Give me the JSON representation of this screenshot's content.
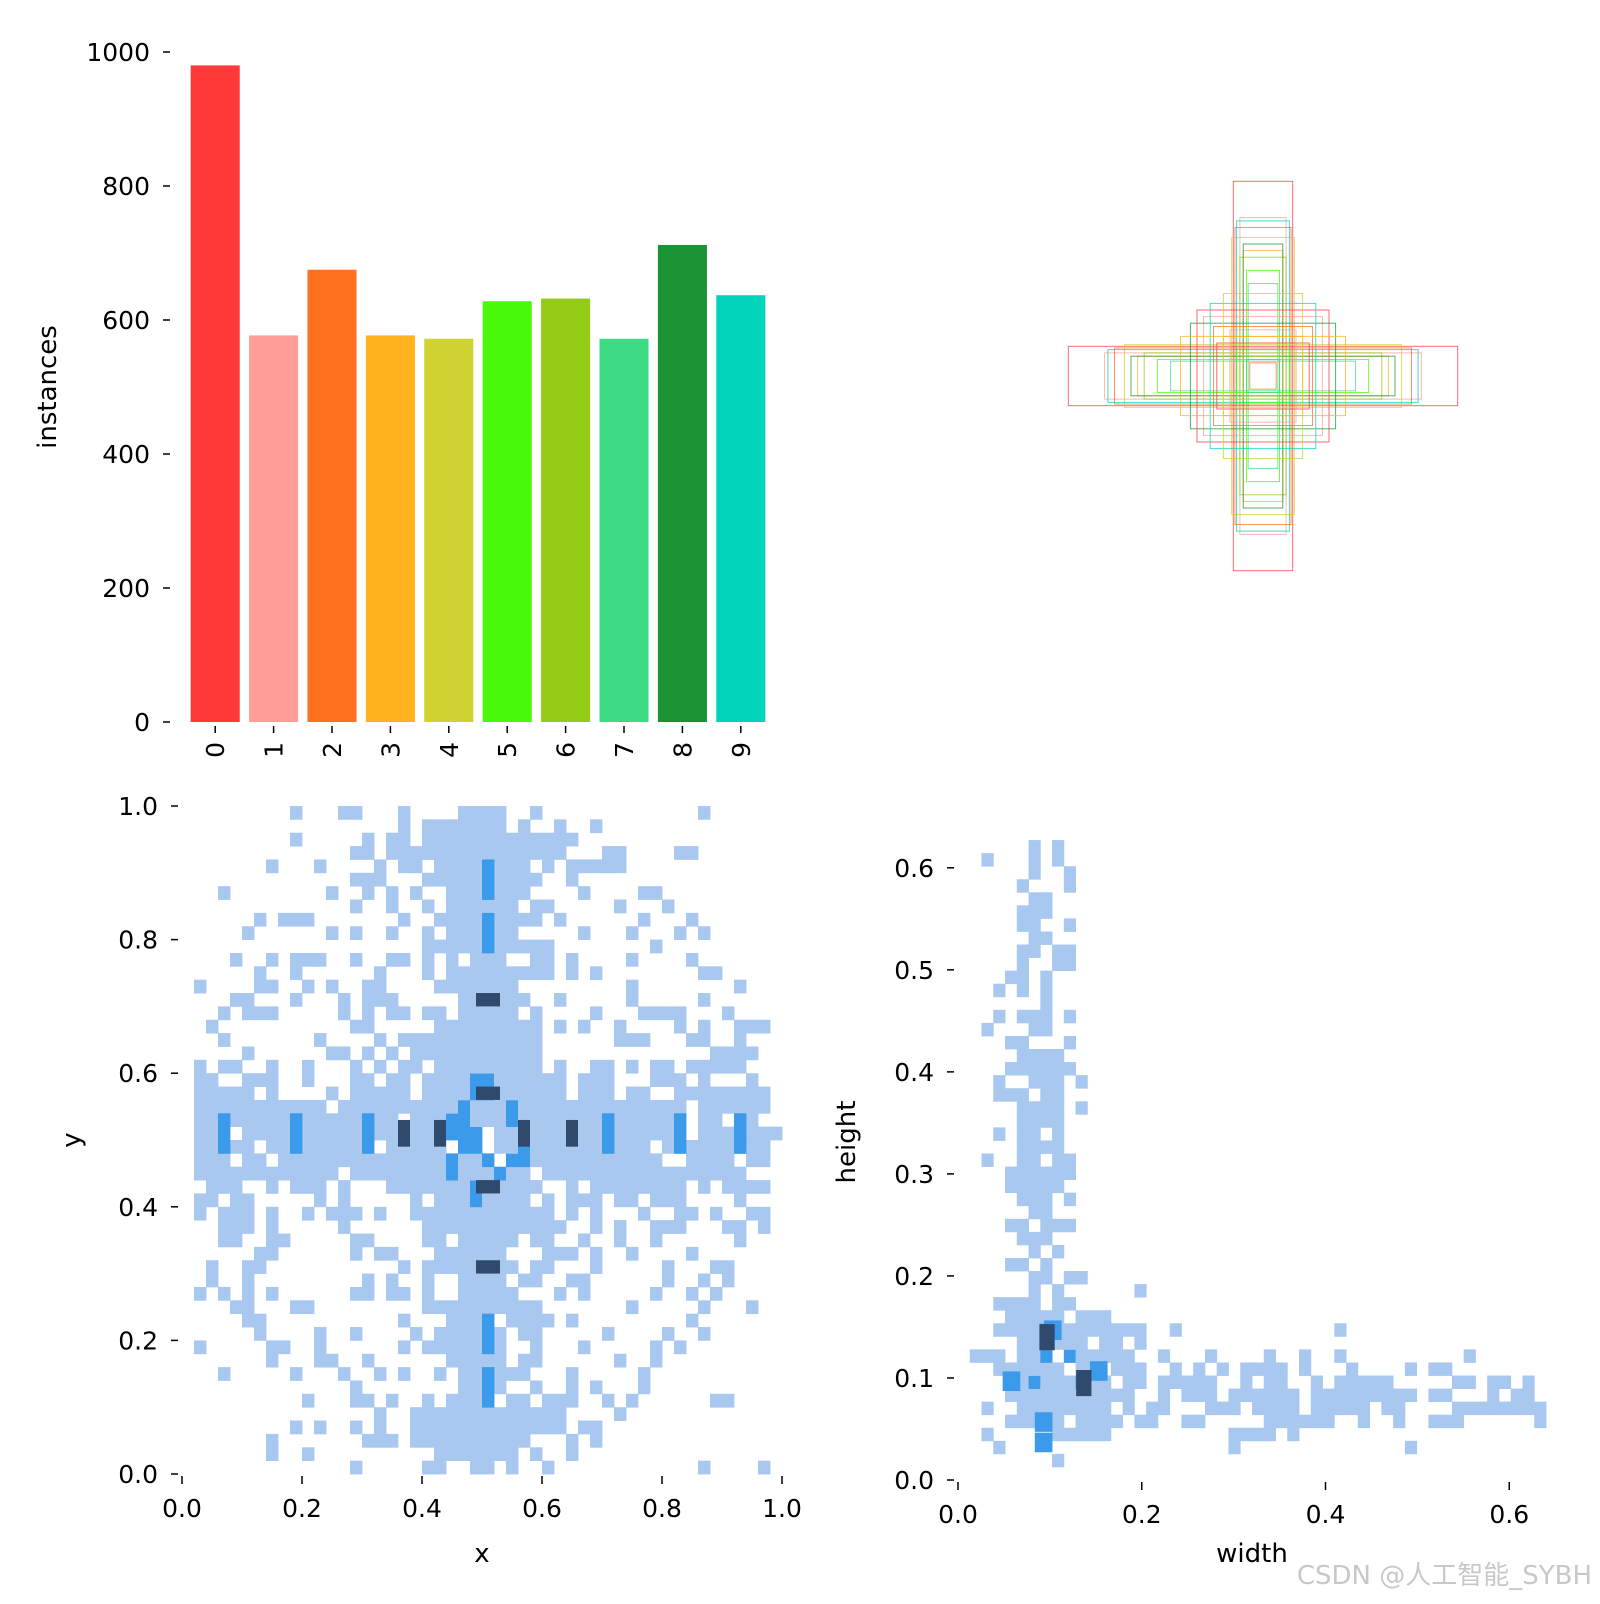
{
  "chart_data": [
    {
      "type": "bar",
      "categories": [
        "0",
        "1",
        "2",
        "3",
        "4",
        "5",
        "6",
        "7",
        "8",
        "9"
      ],
      "values": [
        980,
        577,
        675,
        577,
        572,
        628,
        632,
        572,
        712,
        637
      ],
      "colors": [
        "#ff3838",
        "#ff9d97",
        "#ff701f",
        "#ffb21d",
        "#cfd231",
        "#48f90a",
        "#92cc17",
        "#3ddb86",
        "#1a9334",
        "#00d4bb"
      ],
      "xlabel": "",
      "ylabel": "instances",
      "ylim": [
        0,
        1000
      ],
      "yticks": [
        0,
        200,
        400,
        600,
        800,
        1000
      ],
      "yticklabels": [
        "0",
        "200",
        "400",
        "600",
        "800",
        "1000"
      ]
    },
    {
      "type": "box-overlay",
      "note_colors": [
        "#ff3838",
        "#ff9d97",
        "#ff701f",
        "#ffb21d",
        "#cfd231",
        "#48f90a",
        "#92cc17",
        "#3ddb86",
        "#1a9334",
        "#00d4bb"
      ],
      "boxes_wh": [
        [
          0.09,
          0.59
        ],
        [
          0.07,
          0.48
        ],
        [
          0.085,
          0.45
        ],
        [
          0.06,
          0.38
        ],
        [
          0.095,
          0.42
        ],
        [
          0.05,
          0.32
        ],
        [
          0.07,
          0.36
        ],
        [
          0.045,
          0.28
        ],
        [
          0.06,
          0.4
        ],
        [
          0.08,
          0.47
        ],
        [
          0.59,
          0.09
        ],
        [
          0.48,
          0.07
        ],
        [
          0.45,
          0.085
        ],
        [
          0.38,
          0.06
        ],
        [
          0.42,
          0.095
        ],
        [
          0.32,
          0.05
        ],
        [
          0.36,
          0.07
        ],
        [
          0.28,
          0.045
        ],
        [
          0.4,
          0.06
        ],
        [
          0.47,
          0.08
        ],
        [
          0.2,
          0.2
        ],
        [
          0.18,
          0.18
        ],
        [
          0.15,
          0.15
        ],
        [
          0.12,
          0.12
        ],
        [
          0.1,
          0.1
        ],
        [
          0.08,
          0.08
        ],
        [
          0.06,
          0.06
        ],
        [
          0.05,
          0.05
        ],
        [
          0.22,
          0.16
        ],
        [
          0.16,
          0.22
        ],
        [
          0.14,
          0.1
        ],
        [
          0.1,
          0.14
        ],
        [
          0.04,
          0.04
        ],
        [
          0.25,
          0.12
        ],
        [
          0.12,
          0.25
        ]
      ]
    },
    {
      "type": "heatmap",
      "xlabel": "x",
      "ylabel": "y",
      "xlim": [
        0,
        1
      ],
      "ylim": [
        0,
        1
      ],
      "xticks": [
        0.0,
        0.2,
        0.4,
        0.6,
        0.8,
        1.0
      ],
      "xticklabels": [
        "0.0",
        "0.2",
        "0.4",
        "0.6",
        "0.8",
        "1.0"
      ],
      "yticks": [
        0.0,
        0.2,
        0.4,
        0.6,
        0.8,
        1.0
      ],
      "yticklabels": [
        "0.0",
        "0.2",
        "0.4",
        "0.6",
        "0.8",
        "1.0"
      ],
      "bins": 50,
      "dark_cells": [
        [
          0.5,
          0.7
        ],
        [
          0.5,
          0.57
        ],
        [
          0.43,
          0.5
        ],
        [
          0.57,
          0.5
        ],
        [
          0.5,
          0.43
        ],
        [
          0.5,
          0.3
        ],
        [
          0.36,
          0.5
        ],
        [
          0.64,
          0.5
        ]
      ],
      "colors": {
        "low": "#a9c8ef",
        "mid": "#3b9ae9",
        "high": "#2f4a6d"
      }
    },
    {
      "type": "heatmap",
      "xlabel": "width",
      "ylabel": "height",
      "xlim": [
        0,
        0.64
      ],
      "ylim": [
        0,
        0.64
      ],
      "xticks": [
        0.0,
        0.2,
        0.4,
        0.6
      ],
      "xticklabels": [
        "0.0",
        "0.2",
        "0.4",
        "0.6"
      ],
      "yticks": [
        0.0,
        0.1,
        0.2,
        0.3,
        0.4,
        0.5,
        0.6
      ],
      "yticklabels": [
        "0.0",
        "0.1",
        "0.2",
        "0.3",
        "0.4",
        "0.5",
        "0.6"
      ],
      "bins": 50,
      "dark_cells": [
        [
          0.095,
          0.14
        ],
        [
          0.135,
          0.095
        ]
      ],
      "colors": {
        "low": "#a9c8ef",
        "mid": "#3b9ae9",
        "high": "#2f4a6d"
      }
    }
  ],
  "watermark": "CSDN @人工智能_SYBH"
}
